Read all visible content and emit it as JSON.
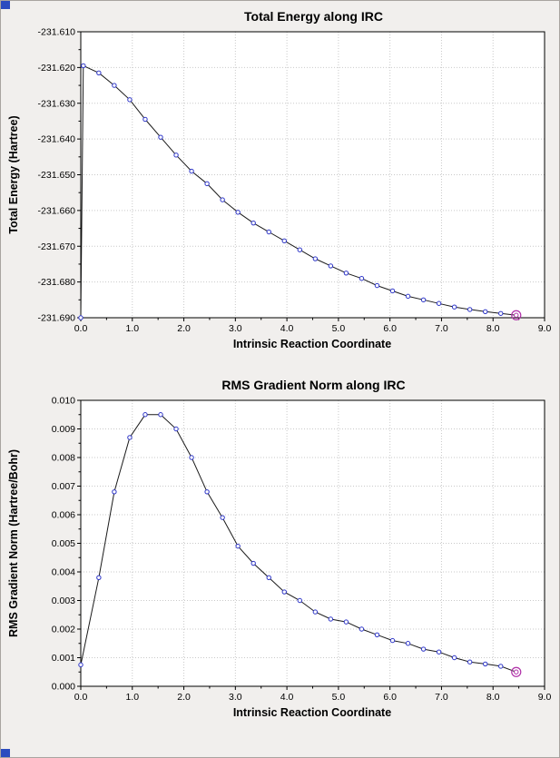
{
  "window": {
    "background": "#f1efed",
    "border_color": "#a8a4a0",
    "corner_accent_color": "#2b4bbf"
  },
  "chart_data": [
    {
      "type": "line",
      "title": "Total Energy along IRC",
      "xlabel": "Intrinsic Reaction Coordinate",
      "ylabel": "Total Energy (Hartree)",
      "xlim": [
        0.0,
        9.0
      ],
      "ylim": [
        -231.69,
        -231.61
      ],
      "x_major_ticks": [
        0,
        1,
        2,
        3,
        4,
        5,
        6,
        7,
        8,
        9
      ],
      "x_tick_labels": [
        "0.0",
        "1.0",
        "2.0",
        "3.0",
        "4.0",
        "5.0",
        "6.0",
        "7.0",
        "8.0",
        "9.0"
      ],
      "x_minor_step": 0.5,
      "y_major_ticks": [
        -231.69,
        -231.68,
        -231.67,
        -231.66,
        -231.65,
        -231.64,
        -231.63,
        -231.62,
        -231.61
      ],
      "y_tick_labels": [
        "-231.690",
        "-231.680",
        "-231.670",
        "-231.660",
        "-231.650",
        "-231.640",
        "-231.630",
        "-231.620",
        "-231.610"
      ],
      "y_minor_step": 0.005,
      "grid": true,
      "legend": "none",
      "line_color": "#1a1a1a",
      "marker_color": "#2d35c8",
      "highlight_color": "#b030a8",
      "highlight_last": true,
      "points": [
        [
          0.0,
          -231.69
        ],
        [
          0.05,
          -231.6195
        ],
        [
          0.35,
          -231.6215
        ],
        [
          0.65,
          -231.625
        ],
        [
          0.95,
          -231.629
        ],
        [
          1.25,
          -231.6345
        ],
        [
          1.55,
          -231.6395
        ],
        [
          1.85,
          -231.6445
        ],
        [
          2.15,
          -231.649
        ],
        [
          2.45,
          -231.6525
        ],
        [
          2.75,
          -231.657
        ],
        [
          3.05,
          -231.6605
        ],
        [
          3.35,
          -231.6635
        ],
        [
          3.65,
          -231.666
        ],
        [
          3.95,
          -231.6685
        ],
        [
          4.25,
          -231.671
        ],
        [
          4.55,
          -231.6735
        ],
        [
          4.85,
          -231.6755
        ],
        [
          5.15,
          -231.6775
        ],
        [
          5.45,
          -231.679
        ],
        [
          5.75,
          -231.681
        ],
        [
          6.05,
          -231.6825
        ],
        [
          6.35,
          -231.684
        ],
        [
          6.65,
          -231.685
        ],
        [
          6.95,
          -231.686
        ],
        [
          7.25,
          -231.687
        ],
        [
          7.55,
          -231.6877
        ],
        [
          7.85,
          -231.6883
        ],
        [
          8.15,
          -231.6888
        ],
        [
          8.45,
          -231.6893
        ]
      ]
    },
    {
      "type": "line",
      "title": "RMS Gradient Norm along IRC",
      "xlabel": "Intrinsic Reaction Coordinate",
      "ylabel": "RMS Gradient Norm (Hartree/Bohr)",
      "xlim": [
        0.0,
        9.0
      ],
      "ylim": [
        0.0,
        0.01
      ],
      "x_major_ticks": [
        0,
        1,
        2,
        3,
        4,
        5,
        6,
        7,
        8,
        9
      ],
      "x_tick_labels": [
        "0.0",
        "1.0",
        "2.0",
        "3.0",
        "4.0",
        "5.0",
        "6.0",
        "7.0",
        "8.0",
        "9.0"
      ],
      "x_minor_step": 0.5,
      "y_major_ticks": [
        0.0,
        0.001,
        0.002,
        0.003,
        0.004,
        0.005,
        0.006,
        0.007,
        0.008,
        0.009,
        0.01
      ],
      "y_tick_labels": [
        "0.000",
        "0.001",
        "0.002",
        "0.003",
        "0.004",
        "0.005",
        "0.006",
        "0.007",
        "0.008",
        "0.009",
        "0.010"
      ],
      "y_minor_step": 0.0005,
      "grid": true,
      "legend": "none",
      "line_color": "#1a1a1a",
      "marker_color": "#2d35c8",
      "highlight_color": "#b030a8",
      "highlight_last": true,
      "points": [
        [
          0.0,
          0.00075
        ],
        [
          0.35,
          0.0038
        ],
        [
          0.65,
          0.0068
        ],
        [
          0.95,
          0.0087
        ],
        [
          1.25,
          0.0095
        ],
        [
          1.55,
          0.0095
        ],
        [
          1.85,
          0.009
        ],
        [
          2.15,
          0.008
        ],
        [
          2.45,
          0.0068
        ],
        [
          2.75,
          0.0059
        ],
        [
          3.05,
          0.0049
        ],
        [
          3.35,
          0.0043
        ],
        [
          3.65,
          0.0038
        ],
        [
          3.95,
          0.0033
        ],
        [
          4.25,
          0.003
        ],
        [
          4.55,
          0.0026
        ],
        [
          4.85,
          0.00235
        ],
        [
          5.15,
          0.00225
        ],
        [
          5.45,
          0.002
        ],
        [
          5.75,
          0.0018
        ],
        [
          6.05,
          0.0016
        ],
        [
          6.35,
          0.0015
        ],
        [
          6.65,
          0.0013
        ],
        [
          6.95,
          0.0012
        ],
        [
          7.25,
          0.001
        ],
        [
          7.55,
          0.00085
        ],
        [
          7.85,
          0.00078
        ],
        [
          8.15,
          0.0007
        ],
        [
          8.45,
          0.0005
        ]
      ]
    }
  ]
}
